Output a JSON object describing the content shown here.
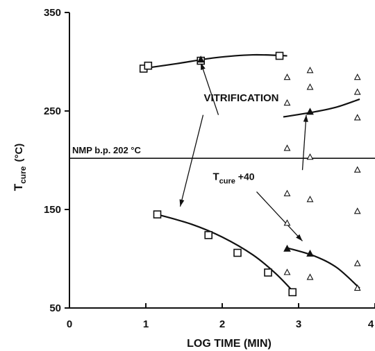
{
  "chart_data": {
    "type": "scatter",
    "title": "",
    "xlabel": "LOG TIME (MIN)",
    "ylabel": {
      "main": "T",
      "sub": "cure",
      "unit": "(°C)"
    },
    "xlim": [
      0,
      4
    ],
    "ylim": [
      50,
      350
    ],
    "xticks": [
      "0",
      "1",
      "2",
      "3",
      "4"
    ],
    "yticks": [
      "50",
      "150",
      "250",
      "350"
    ],
    "grid": false,
    "legend": "none",
    "colors": {
      "ink": "#111111"
    },
    "series": [
      {
        "marker": "square",
        "points": [
          {
            "x": 0.97,
            "y": 293
          },
          {
            "x": 1.03,
            "y": 296
          },
          {
            "x": 1.72,
            "y": 301
          },
          {
            "x": 2.75,
            "y": 306
          },
          {
            "x": 1.15,
            "y": 145
          },
          {
            "x": 1.82,
            "y": 124
          },
          {
            "x": 2.2,
            "y": 106
          },
          {
            "x": 2.6,
            "y": 86
          },
          {
            "x": 2.92,
            "y": 66
          }
        ]
      },
      {
        "marker": "open-triangle",
        "points": [
          {
            "x": 2.85,
            "y": 284
          },
          {
            "x": 2.85,
            "y": 258
          },
          {
            "x": 2.85,
            "y": 212
          },
          {
            "x": 2.85,
            "y": 166
          },
          {
            "x": 2.85,
            "y": 136
          },
          {
            "x": 2.85,
            "y": 86
          },
          {
            "x": 3.15,
            "y": 291
          },
          {
            "x": 3.15,
            "y": 274
          },
          {
            "x": 3.15,
            "y": 249
          },
          {
            "x": 3.15,
            "y": 203
          },
          {
            "x": 3.15,
            "y": 160
          },
          {
            "x": 3.15,
            "y": 81
          },
          {
            "x": 3.77,
            "y": 284
          },
          {
            "x": 3.77,
            "y": 269
          },
          {
            "x": 3.77,
            "y": 243
          },
          {
            "x": 3.77,
            "y": 190
          },
          {
            "x": 3.77,
            "y": 148
          },
          {
            "x": 3.77,
            "y": 95
          },
          {
            "x": 3.77,
            "y": 70
          }
        ]
      },
      {
        "marker": "filled-triangle",
        "points": [
          {
            "x": 1.72,
            "y": 302
          },
          {
            "x": 3.15,
            "y": 249
          },
          {
            "x": 2.85,
            "y": 110
          },
          {
            "x": 3.15,
            "y": 105
          }
        ]
      }
    ],
    "curves": [
      {
        "points": [
          [
            0.95,
            293
          ],
          [
            1.4,
            298
          ],
          [
            1.9,
            304
          ],
          [
            2.4,
            307
          ],
          [
            2.85,
            306
          ]
        ]
      },
      {
        "points": [
          [
            2.8,
            244
          ],
          [
            3.2,
            249
          ],
          [
            3.5,
            254
          ],
          [
            3.8,
            262
          ]
        ]
      },
      {
        "points": [
          [
            1.15,
            145
          ],
          [
            1.6,
            135
          ],
          [
            2.0,
            122
          ],
          [
            2.4,
            104
          ],
          [
            2.7,
            85
          ],
          [
            2.95,
            65
          ]
        ]
      },
      {
        "points": [
          [
            2.85,
            111
          ],
          [
            3.2,
            103
          ],
          [
            3.5,
            91
          ],
          [
            3.8,
            70
          ]
        ]
      }
    ],
    "reference_line": {
      "y": 202,
      "label": "NMP b.p. 202 °C"
    },
    "annotations": [
      {
        "text": "VITRIFICATION",
        "at": [
          2.25,
          260
        ],
        "arrows": [
          {
            "from": [
              1.95,
              246
            ],
            "to": [
              1.72,
              299
            ]
          },
          {
            "from": [
              1.75,
              246
            ],
            "to": [
              1.45,
              153
            ]
          }
        ]
      },
      {
        "text": {
          "main": "T",
          "sub": "cure",
          "suffix": " +40"
        },
        "at": [
          2.15,
          180
        ],
        "arrows": [
          {
            "from": [
              3.05,
              190
            ],
            "to": [
              3.1,
              246
            ]
          },
          {
            "from": [
              2.45,
              168
            ],
            "to": [
              3.05,
              118
            ]
          }
        ]
      }
    ]
  }
}
